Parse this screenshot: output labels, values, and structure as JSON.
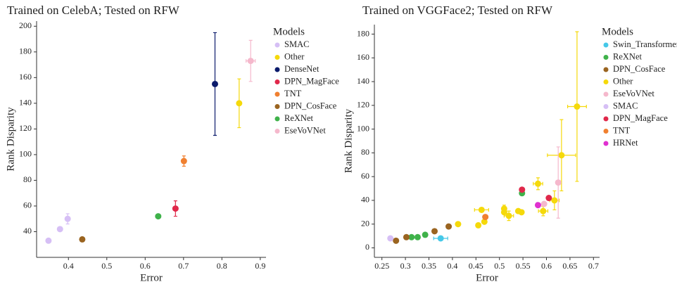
{
  "chart_data": [
    {
      "type": "scatter",
      "title": "Trained on CelebA; Tested on RFW",
      "x_label": "Error",
      "y_label": "Rank Disparity",
      "legend_title": "Models",
      "legend": "right",
      "xlim": [
        0.317,
        0.915
      ],
      "xticks": [
        0.4,
        0.5,
        0.6,
        0.7,
        0.8,
        0.9
      ],
      "ylim": [
        20,
        204
      ],
      "yticks": [
        40,
        60,
        80,
        100,
        120,
        140,
        160,
        180,
        200
      ],
      "series": [
        {
          "name": "SMAC",
          "color": "#d6bff5",
          "x": [
            0.348,
            0.378,
            0.398
          ],
          "values": [
            33,
            42,
            50
          ],
          "yerr": [
            null,
            null,
            4
          ],
          "xerr": [
            null,
            null,
            null
          ]
        },
        {
          "name": "Other",
          "color": "#f5d90a",
          "x": [
            0.845
          ],
          "values": [
            140
          ],
          "yerr": [
            19
          ],
          "xerr": [
            null
          ]
        },
        {
          "name": "DenseNet",
          "color": "#0a1a6b",
          "x": [
            0.782
          ],
          "values": [
            155
          ],
          "yerr": [
            40
          ],
          "xerr": [
            null
          ]
        },
        {
          "name": "DPN_MagFace",
          "color": "#e0284a",
          "x": [
            0.679
          ],
          "values": [
            58
          ],
          "yerr": [
            6
          ],
          "xerr": [
            null
          ]
        },
        {
          "name": "TNT",
          "color": "#f08030",
          "x": [
            0.701
          ],
          "values": [
            95
          ],
          "yerr": [
            4
          ],
          "xerr": [
            null
          ]
        },
        {
          "name": "DPN_CosFace",
          "color": "#9a6420",
          "x": [
            0.436
          ],
          "values": [
            34
          ],
          "yerr": [
            1
          ],
          "xerr": [
            null
          ]
        },
        {
          "name": "ReXNet",
          "color": "#3fb24a",
          "x": [
            0.634
          ],
          "values": [
            52
          ],
          "yerr": [
            null
          ],
          "xerr": [
            null
          ]
        },
        {
          "name": "EseVoVNet",
          "color": "#f5b8cc",
          "x": [
            0.875
          ],
          "values": [
            173
          ],
          "yerr": [
            16
          ],
          "xerr": [
            0.012
          ]
        }
      ]
    },
    {
      "type": "scatter",
      "title": "Trained on VGGFace2; Tested on RFW",
      "x_label": "Error",
      "y_label": "Rank Disparity",
      "legend_title": "Models",
      "legend": "right",
      "xlim": [
        0.234,
        0.713
      ],
      "xticks": [
        0.25,
        0.3,
        0.35,
        0.4,
        0.45,
        0.5,
        0.55,
        0.6,
        0.65,
        0.7
      ],
      "ylim": [
        -8,
        188
      ],
      "yticks": [
        0,
        20,
        40,
        60,
        80,
        100,
        120,
        140,
        160,
        180
      ],
      "series": [
        {
          "name": "Swin_Transformer",
          "color": "#45c8e8",
          "x": [
            0.375
          ],
          "values": [
            8
          ],
          "yerr": [
            null
          ],
          "xerr": [
            0.015
          ]
        },
        {
          "name": "ReXNet",
          "color": "#3fb24a",
          "x": [
            0.313,
            0.326,
            0.342,
            0.548
          ],
          "values": [
            9,
            9,
            11,
            46
          ],
          "yerr": [
            null,
            null,
            null,
            null
          ],
          "xerr": [
            null,
            null,
            null,
            null
          ]
        },
        {
          "name": "DPN_CosFace",
          "color": "#9a6420",
          "x": [
            0.28,
            0.302,
            0.362,
            0.392
          ],
          "values": [
            6,
            9,
            14,
            18
          ],
          "yerr": [
            null,
            null,
            null,
            null
          ],
          "xerr": [
            null,
            null,
            null,
            null
          ]
        },
        {
          "name": "Other",
          "color": "#f5d90a",
          "x": [
            0.412,
            0.455,
            0.462,
            0.468,
            0.51,
            0.51,
            0.52,
            0.54,
            0.547,
            0.582,
            0.593,
            0.617,
            0.632,
            0.665
          ],
          "values": [
            20,
            19,
            32,
            22,
            33,
            30,
            27,
            31,
            30,
            54,
            31,
            40,
            78,
            119
          ],
          "yerr": [
            null,
            null,
            null,
            null,
            3,
            null,
            4,
            null,
            null,
            5,
            4,
            8,
            30,
            63
          ],
          "xerr": [
            null,
            null,
            0.015,
            null,
            null,
            null,
            0.01,
            null,
            null,
            0.01,
            0.01,
            0.01,
            0.03,
            0.02
          ]
        },
        {
          "name": "EseVoVNet",
          "color": "#f5b8cc",
          "x": [
            0.595,
            0.625
          ],
          "values": [
            37,
            55
          ],
          "yerr": [
            null,
            30
          ],
          "xerr": [
            null,
            null
          ]
        },
        {
          "name": "SMAC",
          "color": "#d6bff5",
          "x": [
            0.268
          ],
          "values": [
            8
          ],
          "yerr": [
            null
          ],
          "xerr": [
            null
          ]
        },
        {
          "name": "DPN_MagFace",
          "color": "#e0284a",
          "x": [
            0.548,
            0.605
          ],
          "values": [
            49,
            42
          ],
          "yerr": [
            null,
            null
          ],
          "xerr": [
            null,
            null
          ]
        },
        {
          "name": "TNT",
          "color": "#f08030",
          "x": [
            0.47
          ],
          "values": [
            26
          ],
          "yerr": [
            null
          ],
          "xerr": [
            null
          ]
        },
        {
          "name": "HRNet",
          "color": "#e030d0",
          "x": [
            0.582
          ],
          "values": [
            36
          ],
          "yerr": [
            null
          ],
          "xerr": [
            null
          ]
        }
      ]
    }
  ]
}
